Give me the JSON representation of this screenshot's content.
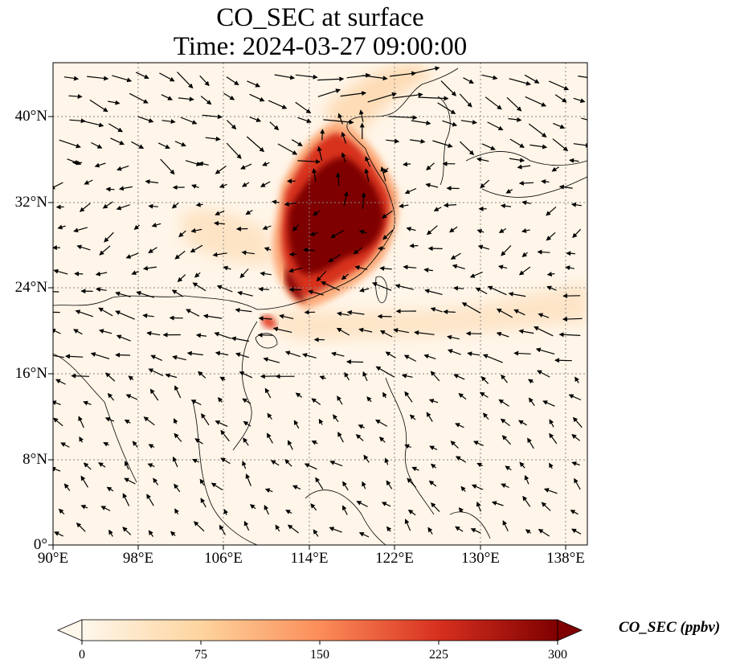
{
  "title_line1": "CO_SEC at surface",
  "title_line2": "Time: 2024-03-27 09:00:00",
  "x_ticks": [
    "90°E",
    "98°E",
    "106°E",
    "114°E",
    "122°E",
    "130°E",
    "138°E"
  ],
  "y_ticks": [
    "40°N",
    "32°N",
    "24°N",
    "16°N",
    "8°N",
    "0°"
  ],
  "colorbar": {
    "label": "CO_SEC (ppbv)",
    "ticks": [
      "0",
      "75",
      "150",
      "225",
      "300"
    ],
    "range": [
      0,
      300
    ],
    "extend": "both",
    "colormap": [
      "#fff7ec",
      "#fdd49e",
      "#fc8d59",
      "#d7301f",
      "#7f0000"
    ]
  },
  "map": {
    "lon_range": [
      90,
      140
    ],
    "lat_range": [
      0,
      45
    ],
    "gridlines": "dotted"
  }
}
